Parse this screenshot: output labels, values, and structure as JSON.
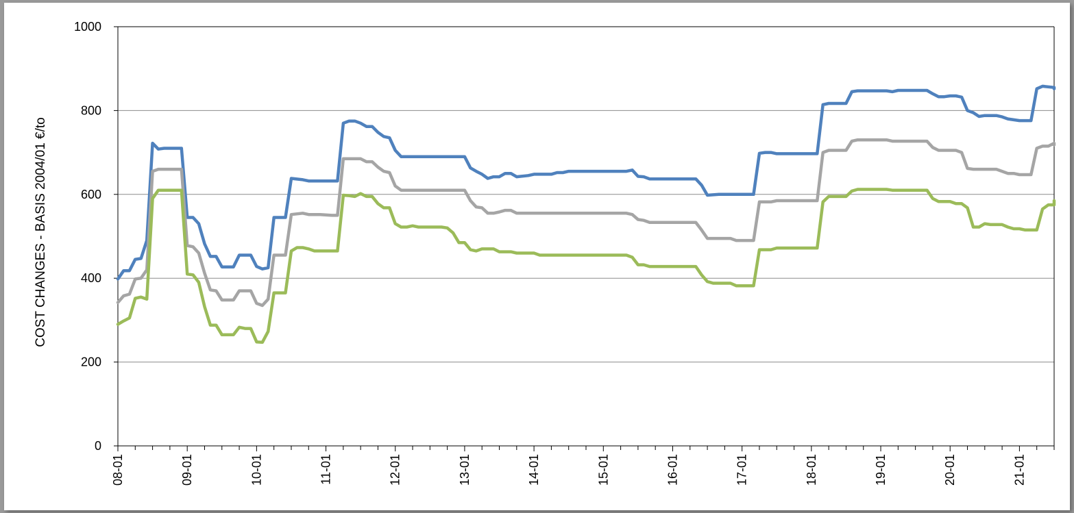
{
  "chart_data": {
    "type": "line",
    "title": "",
    "xlabel": "",
    "ylabel": "COST CHANGES  - BASIS 2004/01   €/to",
    "ylim": [
      0,
      1000
    ],
    "yticks": [
      0,
      200,
      400,
      600,
      800,
      1000
    ],
    "grid": true,
    "legend": "none",
    "x_tick_labels": [
      "08-01",
      "09-01",
      "10-01",
      "11-01",
      "12-01",
      "13-01",
      "14-01",
      "15-01",
      "16-01",
      "17-01",
      "18-01",
      "19-01",
      "20-01",
      "21-01"
    ],
    "months_total": 162,
    "series": [
      {
        "color": "#4f81bd",
        "points": [
          [
            0,
            398
          ],
          [
            1,
            418
          ],
          [
            2,
            418
          ],
          [
            3,
            445
          ],
          [
            4,
            447
          ],
          [
            5,
            490
          ],
          [
            6,
            722
          ],
          [
            7,
            708
          ],
          [
            8,
            710
          ],
          [
            11,
            710
          ],
          [
            12,
            545
          ],
          [
            13,
            545
          ],
          [
            14,
            530
          ],
          [
            15,
            482
          ],
          [
            16,
            452
          ],
          [
            17,
            452
          ],
          [
            18,
            427
          ],
          [
            20,
            427
          ],
          [
            21,
            455
          ],
          [
            23,
            455
          ],
          [
            24,
            428
          ],
          [
            25,
            422
          ],
          [
            26,
            425
          ],
          [
            27,
            545
          ],
          [
            29,
            545
          ],
          [
            30,
            638
          ],
          [
            32,
            635
          ],
          [
            33,
            632
          ],
          [
            35,
            632
          ],
          [
            37,
            632
          ],
          [
            38,
            632
          ],
          [
            39,
            770
          ],
          [
            40,
            775
          ],
          [
            41,
            775
          ],
          [
            42,
            770
          ],
          [
            43,
            762
          ],
          [
            44,
            762
          ],
          [
            45,
            748
          ],
          [
            46,
            738
          ],
          [
            47,
            735
          ],
          [
            48,
            705
          ],
          [
            49,
            690
          ],
          [
            60,
            690
          ],
          [
            61,
            663
          ],
          [
            62,
            655
          ],
          [
            63,
            648
          ],
          [
            64,
            638
          ],
          [
            65,
            642
          ],
          [
            66,
            642
          ],
          [
            67,
            650
          ],
          [
            68,
            650
          ],
          [
            69,
            642
          ],
          [
            71,
            645
          ],
          [
            72,
            648
          ],
          [
            75,
            648
          ],
          [
            76,
            652
          ],
          [
            77,
            652
          ],
          [
            78,
            655
          ],
          [
            88,
            655
          ],
          [
            89,
            658
          ],
          [
            90,
            643
          ],
          [
            91,
            642
          ],
          [
            92,
            637
          ],
          [
            100,
            637
          ],
          [
            101,
            622
          ],
          [
            102,
            598
          ],
          [
            104,
            600
          ],
          [
            110,
            600
          ],
          [
            111,
            698
          ],
          [
            112,
            700
          ],
          [
            113,
            700
          ],
          [
            114,
            697
          ],
          [
            121,
            697
          ],
          [
            122,
            814
          ],
          [
            123,
            817
          ],
          [
            126,
            817
          ],
          [
            127,
            845
          ],
          [
            128,
            847
          ],
          [
            133,
            847
          ],
          [
            134,
            845
          ],
          [
            135,
            848
          ],
          [
            140,
            848
          ],
          [
            141,
            840
          ],
          [
            142,
            833
          ],
          [
            143,
            833
          ],
          [
            144,
            835
          ],
          [
            145,
            835
          ],
          [
            146,
            832
          ],
          [
            147,
            800
          ],
          [
            148,
            795
          ],
          [
            149,
            786
          ],
          [
            150,
            788
          ],
          [
            152,
            788
          ],
          [
            153,
            785
          ],
          [
            154,
            780
          ],
          [
            155,
            778
          ],
          [
            156,
            776
          ],
          [
            158,
            776
          ],
          [
            159,
            852
          ],
          [
            160,
            858
          ],
          [
            162,
            855
          ],
          [
            163,
            852
          ]
        ]
      },
      {
        "color": "#a5a5a5",
        "points": [
          [
            0,
            342
          ],
          [
            1,
            358
          ],
          [
            2,
            362
          ],
          [
            3,
            398
          ],
          [
            4,
            400
          ],
          [
            5,
            420
          ],
          [
            6,
            655
          ],
          [
            7,
            660
          ],
          [
            8,
            660
          ],
          [
            11,
            660
          ],
          [
            12,
            478
          ],
          [
            13,
            475
          ],
          [
            14,
            460
          ],
          [
            15,
            412
          ],
          [
            16,
            372
          ],
          [
            17,
            370
          ],
          [
            18,
            348
          ],
          [
            20,
            348
          ],
          [
            21,
            370
          ],
          [
            23,
            370
          ],
          [
            24,
            340
          ],
          [
            25,
            335
          ],
          [
            26,
            350
          ],
          [
            27,
            455
          ],
          [
            29,
            455
          ],
          [
            30,
            552
          ],
          [
            32,
            555
          ],
          [
            33,
            552
          ],
          [
            35,
            552
          ],
          [
            37,
            550
          ],
          [
            38,
            550
          ],
          [
            39,
            685
          ],
          [
            40,
            685
          ],
          [
            42,
            685
          ],
          [
            43,
            678
          ],
          [
            44,
            678
          ],
          [
            45,
            665
          ],
          [
            46,
            655
          ],
          [
            47,
            652
          ],
          [
            48,
            620
          ],
          [
            49,
            610
          ],
          [
            60,
            610
          ],
          [
            61,
            585
          ],
          [
            62,
            570
          ],
          [
            63,
            568
          ],
          [
            64,
            555
          ],
          [
            65,
            555
          ],
          [
            66,
            558
          ],
          [
            67,
            562
          ],
          [
            68,
            562
          ],
          [
            69,
            555
          ],
          [
            88,
            555
          ],
          [
            89,
            552
          ],
          [
            90,
            540
          ],
          [
            91,
            538
          ],
          [
            92,
            533
          ],
          [
            100,
            533
          ],
          [
            101,
            515
          ],
          [
            102,
            495
          ],
          [
            106,
            495
          ],
          [
            107,
            490
          ],
          [
            110,
            490
          ],
          [
            111,
            582
          ],
          [
            113,
            582
          ],
          [
            114,
            585
          ],
          [
            121,
            585
          ],
          [
            122,
            700
          ],
          [
            123,
            705
          ],
          [
            126,
            705
          ],
          [
            127,
            727
          ],
          [
            128,
            730
          ],
          [
            133,
            730
          ],
          [
            134,
            727
          ],
          [
            139,
            727
          ],
          [
            140,
            727
          ],
          [
            141,
            712
          ],
          [
            142,
            705
          ],
          [
            145,
            705
          ],
          [
            146,
            700
          ],
          [
            147,
            662
          ],
          [
            148,
            660
          ],
          [
            152,
            660
          ],
          [
            153,
            655
          ],
          [
            154,
            650
          ],
          [
            155,
            650
          ],
          [
            156,
            647
          ],
          [
            158,
            647
          ],
          [
            159,
            710
          ],
          [
            160,
            715
          ],
          [
            161,
            715
          ],
          [
            162,
            722
          ],
          [
            163,
            718
          ]
        ]
      },
      {
        "color": "#9bbb59",
        "points": [
          [
            0,
            290
          ],
          [
            1,
            298
          ],
          [
            2,
            305
          ],
          [
            3,
            352
          ],
          [
            4,
            355
          ],
          [
            5,
            350
          ],
          [
            6,
            590
          ],
          [
            7,
            610
          ],
          [
            8,
            610
          ],
          [
            11,
            610
          ],
          [
            12,
            410
          ],
          [
            13,
            408
          ],
          [
            14,
            390
          ],
          [
            15,
            332
          ],
          [
            16,
            288
          ],
          [
            17,
            288
          ],
          [
            18,
            265
          ],
          [
            20,
            265
          ],
          [
            21,
            283
          ],
          [
            22,
            280
          ],
          [
            23,
            280
          ],
          [
            24,
            248
          ],
          [
            25,
            247
          ],
          [
            26,
            273
          ],
          [
            27,
            365
          ],
          [
            29,
            365
          ],
          [
            30,
            465
          ],
          [
            31,
            473
          ],
          [
            32,
            473
          ],
          [
            33,
            470
          ],
          [
            34,
            465
          ],
          [
            38,
            465
          ],
          [
            39,
            598
          ],
          [
            40,
            597
          ],
          [
            41,
            595
          ],
          [
            42,
            602
          ],
          [
            43,
            595
          ],
          [
            44,
            595
          ],
          [
            45,
            578
          ],
          [
            46,
            568
          ],
          [
            47,
            568
          ],
          [
            48,
            530
          ],
          [
            49,
            522
          ],
          [
            50,
            522
          ],
          [
            51,
            525
          ],
          [
            52,
            522
          ],
          [
            56,
            522
          ],
          [
            57,
            520
          ],
          [
            58,
            508
          ],
          [
            59,
            485
          ],
          [
            60,
            485
          ],
          [
            61,
            468
          ],
          [
            62,
            465
          ],
          [
            63,
            470
          ],
          [
            65,
            470
          ],
          [
            66,
            463
          ],
          [
            68,
            463
          ],
          [
            69,
            460
          ],
          [
            72,
            460
          ],
          [
            73,
            455
          ],
          [
            88,
            455
          ],
          [
            89,
            450
          ],
          [
            90,
            432
          ],
          [
            91,
            432
          ],
          [
            92,
            428
          ],
          [
            100,
            428
          ],
          [
            101,
            408
          ],
          [
            102,
            392
          ],
          [
            103,
            388
          ],
          [
            106,
            388
          ],
          [
            107,
            382
          ],
          [
            110,
            382
          ],
          [
            111,
            468
          ],
          [
            113,
            468
          ],
          [
            114,
            472
          ],
          [
            121,
            472
          ],
          [
            122,
            582
          ],
          [
            123,
            595
          ],
          [
            126,
            595
          ],
          [
            127,
            608
          ],
          [
            128,
            612
          ],
          [
            133,
            612
          ],
          [
            134,
            610
          ],
          [
            139,
            610
          ],
          [
            140,
            610
          ],
          [
            141,
            590
          ],
          [
            142,
            583
          ],
          [
            144,
            583
          ],
          [
            145,
            578
          ],
          [
            146,
            578
          ],
          [
            147,
            568
          ],
          [
            148,
            522
          ],
          [
            149,
            522
          ],
          [
            150,
            530
          ],
          [
            151,
            528
          ],
          [
            153,
            528
          ],
          [
            154,
            522
          ],
          [
            155,
            518
          ],
          [
            156,
            518
          ],
          [
            157,
            515
          ],
          [
            159,
            515
          ],
          [
            160,
            565
          ],
          [
            161,
            575
          ],
          [
            162,
            575
          ],
          [
            163,
            585
          ],
          [
            164,
            582
          ]
        ]
      }
    ]
  }
}
